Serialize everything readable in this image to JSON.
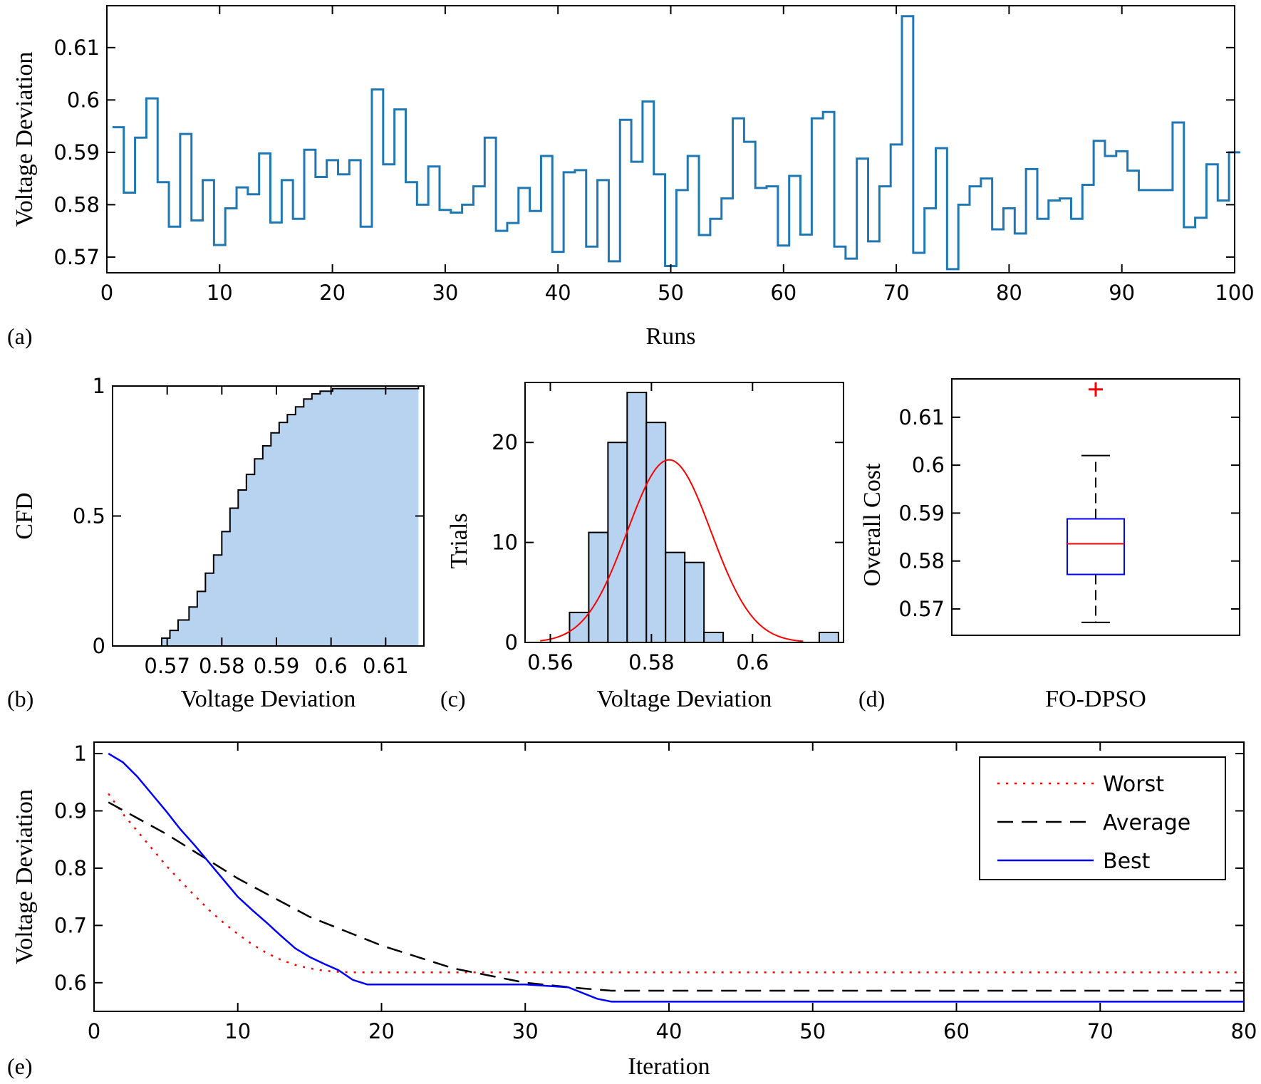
{
  "chart_data": [
    {
      "panel_label": "(a)",
      "type": "line",
      "step": true,
      "xlabel": "Runs",
      "ylabel": "Voltage Deviation",
      "xlim": [
        0,
        100
      ],
      "ylim": [
        0.567,
        0.618
      ],
      "xticks": [
        0,
        10,
        20,
        30,
        40,
        50,
        60,
        70,
        80,
        90,
        100
      ],
      "yticks": [
        0.57,
        0.58,
        0.59,
        0.6,
        0.61
      ],
      "color": "#1f77b4",
      "x": [
        1,
        2,
        3,
        4,
        5,
        6,
        7,
        8,
        9,
        10,
        11,
        12,
        13,
        14,
        15,
        16,
        17,
        18,
        19,
        20,
        21,
        22,
        23,
        24,
        25,
        26,
        27,
        28,
        29,
        30,
        31,
        32,
        33,
        34,
        35,
        36,
        37,
        38,
        39,
        40,
        41,
        42,
        43,
        44,
        45,
        46,
        47,
        48,
        49,
        50,
        51,
        52,
        53,
        54,
        55,
        56,
        57,
        58,
        59,
        60,
        61,
        62,
        63,
        64,
        65,
        66,
        67,
        68,
        69,
        70,
        71,
        72,
        73,
        74,
        75,
        76,
        77,
        78,
        79,
        80,
        81,
        82,
        83,
        84,
        85,
        86,
        87,
        88,
        89,
        90,
        91,
        92,
        93,
        94,
        95,
        96,
        97,
        98,
        99,
        100
      ],
      "y": [
        0.5948,
        0.5823,
        0.5928,
        0.6003,
        0.5843,
        0.5758,
        0.5935,
        0.577,
        0.5847,
        0.5723,
        0.5793,
        0.5833,
        0.582,
        0.5898,
        0.5766,
        0.5847,
        0.5773,
        0.5905,
        0.5853,
        0.5885,
        0.5858,
        0.5885,
        0.5758,
        0.602,
        0.5877,
        0.5982,
        0.5843,
        0.58,
        0.5873,
        0.579,
        0.5785,
        0.58,
        0.5835,
        0.5928,
        0.575,
        0.5765,
        0.5832,
        0.5788,
        0.5893,
        0.571,
        0.5862,
        0.5866,
        0.572,
        0.5847,
        0.5692,
        0.5962,
        0.5882,
        0.5997,
        0.5858,
        0.5683,
        0.5828,
        0.5893,
        0.5742,
        0.5773,
        0.5812,
        0.5965,
        0.592,
        0.5832,
        0.5835,
        0.5722,
        0.5855,
        0.5743,
        0.5965,
        0.5977,
        0.572,
        0.5697,
        0.5888,
        0.573,
        0.5835,
        0.5915,
        0.616,
        0.5708,
        0.5793,
        0.5908,
        0.5677,
        0.58,
        0.5835,
        0.585,
        0.5753,
        0.5793,
        0.5745,
        0.5868,
        0.5773,
        0.5808,
        0.5812,
        0.5773,
        0.5838,
        0.5922,
        0.5893,
        0.5902,
        0.5865,
        0.5828,
        0.5828,
        0.5828,
        0.5957,
        0.5757,
        0.5775,
        0.5877,
        0.5808,
        0.59
      ]
    },
    {
      "panel_label": "(b)",
      "type": "area",
      "xlabel": "Voltage Deviation",
      "ylabel": "CFD",
      "xlim": [
        0.56,
        0.617
      ],
      "ylim": [
        0,
        1
      ],
      "xticks": [
        0.57,
        0.58,
        0.59,
        0.6,
        0.61
      ],
      "xtick_labels": [
        "0.57",
        "0.58",
        "0.59",
        "0.6",
        "0.61"
      ],
      "yticks": [
        0,
        0.5,
        1
      ],
      "fill": "#b8d3f0",
      "x": [
        0.5677,
        0.569,
        0.5705,
        0.572,
        0.574,
        0.5755,
        0.577,
        0.5785,
        0.58,
        0.5815,
        0.583,
        0.5845,
        0.586,
        0.5875,
        0.589,
        0.5905,
        0.592,
        0.5935,
        0.595,
        0.5965,
        0.598,
        0.6003,
        0.602,
        0.6035,
        0.616
      ],
      "y": [
        0,
        0.03,
        0.06,
        0.1,
        0.15,
        0.21,
        0.28,
        0.35,
        0.44,
        0.53,
        0.6,
        0.66,
        0.72,
        0.77,
        0.82,
        0.86,
        0.89,
        0.92,
        0.95,
        0.97,
        0.98,
        0.99,
        0.99,
        0.99,
        1.0
      ]
    },
    {
      "panel_label": "(c)",
      "type": "bar",
      "xlabel": "Voltage Deviation",
      "ylabel": "Trials",
      "xlim": [
        0.555,
        0.618
      ],
      "ylim": [
        0,
        26
      ],
      "xticks": [
        0.56,
        0.58,
        0.6
      ],
      "yticks": [
        0,
        10,
        20
      ],
      "fill": "#b8d3f0",
      "bin_edges": [
        0.5638,
        0.5676,
        0.5714,
        0.5752,
        0.579,
        0.5828,
        0.5866,
        0.5904,
        0.5942,
        0.598,
        0.6018,
        0.6056,
        0.6094,
        0.6132,
        0.617
      ],
      "values": [
        3,
        11,
        20,
        25,
        22,
        9,
        8,
        1,
        0,
        0,
        0,
        0,
        0,
        1
      ],
      "fit": {
        "type": "normal",
        "mean": 0.5835,
        "std": 0.0083,
        "color": "#ff0000"
      }
    },
    {
      "panel_label": "(d)",
      "type": "box",
      "xlabel": "FO-DPSO",
      "ylabel": "Overall Cost",
      "ylim": [
        0.5645,
        0.618
      ],
      "yticks": [
        0.57,
        0.58,
        0.59,
        0.6,
        0.61
      ],
      "box": {
        "whisker_low": 0.5672,
        "q1": 0.5772,
        "median": 0.5836,
        "q3": 0.5888,
        "whisker_high": 0.602,
        "outliers": [
          0.6158
        ]
      },
      "colors": {
        "box": "#0000ff",
        "median": "#ff0000",
        "outlier": "#ff0000"
      }
    },
    {
      "panel_label": "(e)",
      "type": "line",
      "xlabel": "Iteration",
      "ylabel": "Voltage Deviation",
      "xlim": [
        0,
        80
      ],
      "ylim": [
        0.55,
        1.02
      ],
      "xticks": [
        0,
        10,
        20,
        30,
        40,
        50,
        60,
        70,
        80
      ],
      "yticks": [
        0.6,
        0.7,
        0.8,
        0.9,
        1
      ],
      "legend": "top-right",
      "series": [
        {
          "name": "Worst",
          "color": "#ff0000",
          "style": "dotted",
          "x": [
            1,
            2,
            3,
            4,
            5,
            6,
            7,
            8,
            9,
            10,
            11,
            12,
            13,
            14,
            15,
            16,
            17,
            18,
            80
          ],
          "y": [
            0.93,
            0.895,
            0.865,
            0.835,
            0.805,
            0.778,
            0.752,
            0.727,
            0.705,
            0.685,
            0.667,
            0.652,
            0.64,
            0.631,
            0.625,
            0.621,
            0.619,
            0.618,
            0.618
          ]
        },
        {
          "name": "Average",
          "color": "#000000",
          "style": "dashed",
          "x": [
            1,
            5,
            10,
            15,
            20,
            25,
            28,
            30,
            32,
            34,
            35,
            36,
            80
          ],
          "y": [
            0.915,
            0.86,
            0.782,
            0.715,
            0.665,
            0.625,
            0.61,
            0.6,
            0.595,
            0.59,
            0.588,
            0.586,
            0.586
          ]
        },
        {
          "name": "Best",
          "color": "#0000ff",
          "style": "solid",
          "x": [
            1,
            2,
            3,
            4,
            5,
            6,
            7,
            8,
            9,
            10,
            11,
            12,
            13,
            14,
            15,
            16,
            17,
            18,
            19,
            30,
            33,
            34,
            35,
            36,
            80
          ],
          "y": [
            1.0,
            0.985,
            0.96,
            0.93,
            0.9,
            0.868,
            0.84,
            0.81,
            0.78,
            0.75,
            0.727,
            0.705,
            0.682,
            0.66,
            0.645,
            0.633,
            0.622,
            0.605,
            0.597,
            0.597,
            0.592,
            0.582,
            0.572,
            0.567,
            0.567
          ]
        }
      ]
    }
  ]
}
